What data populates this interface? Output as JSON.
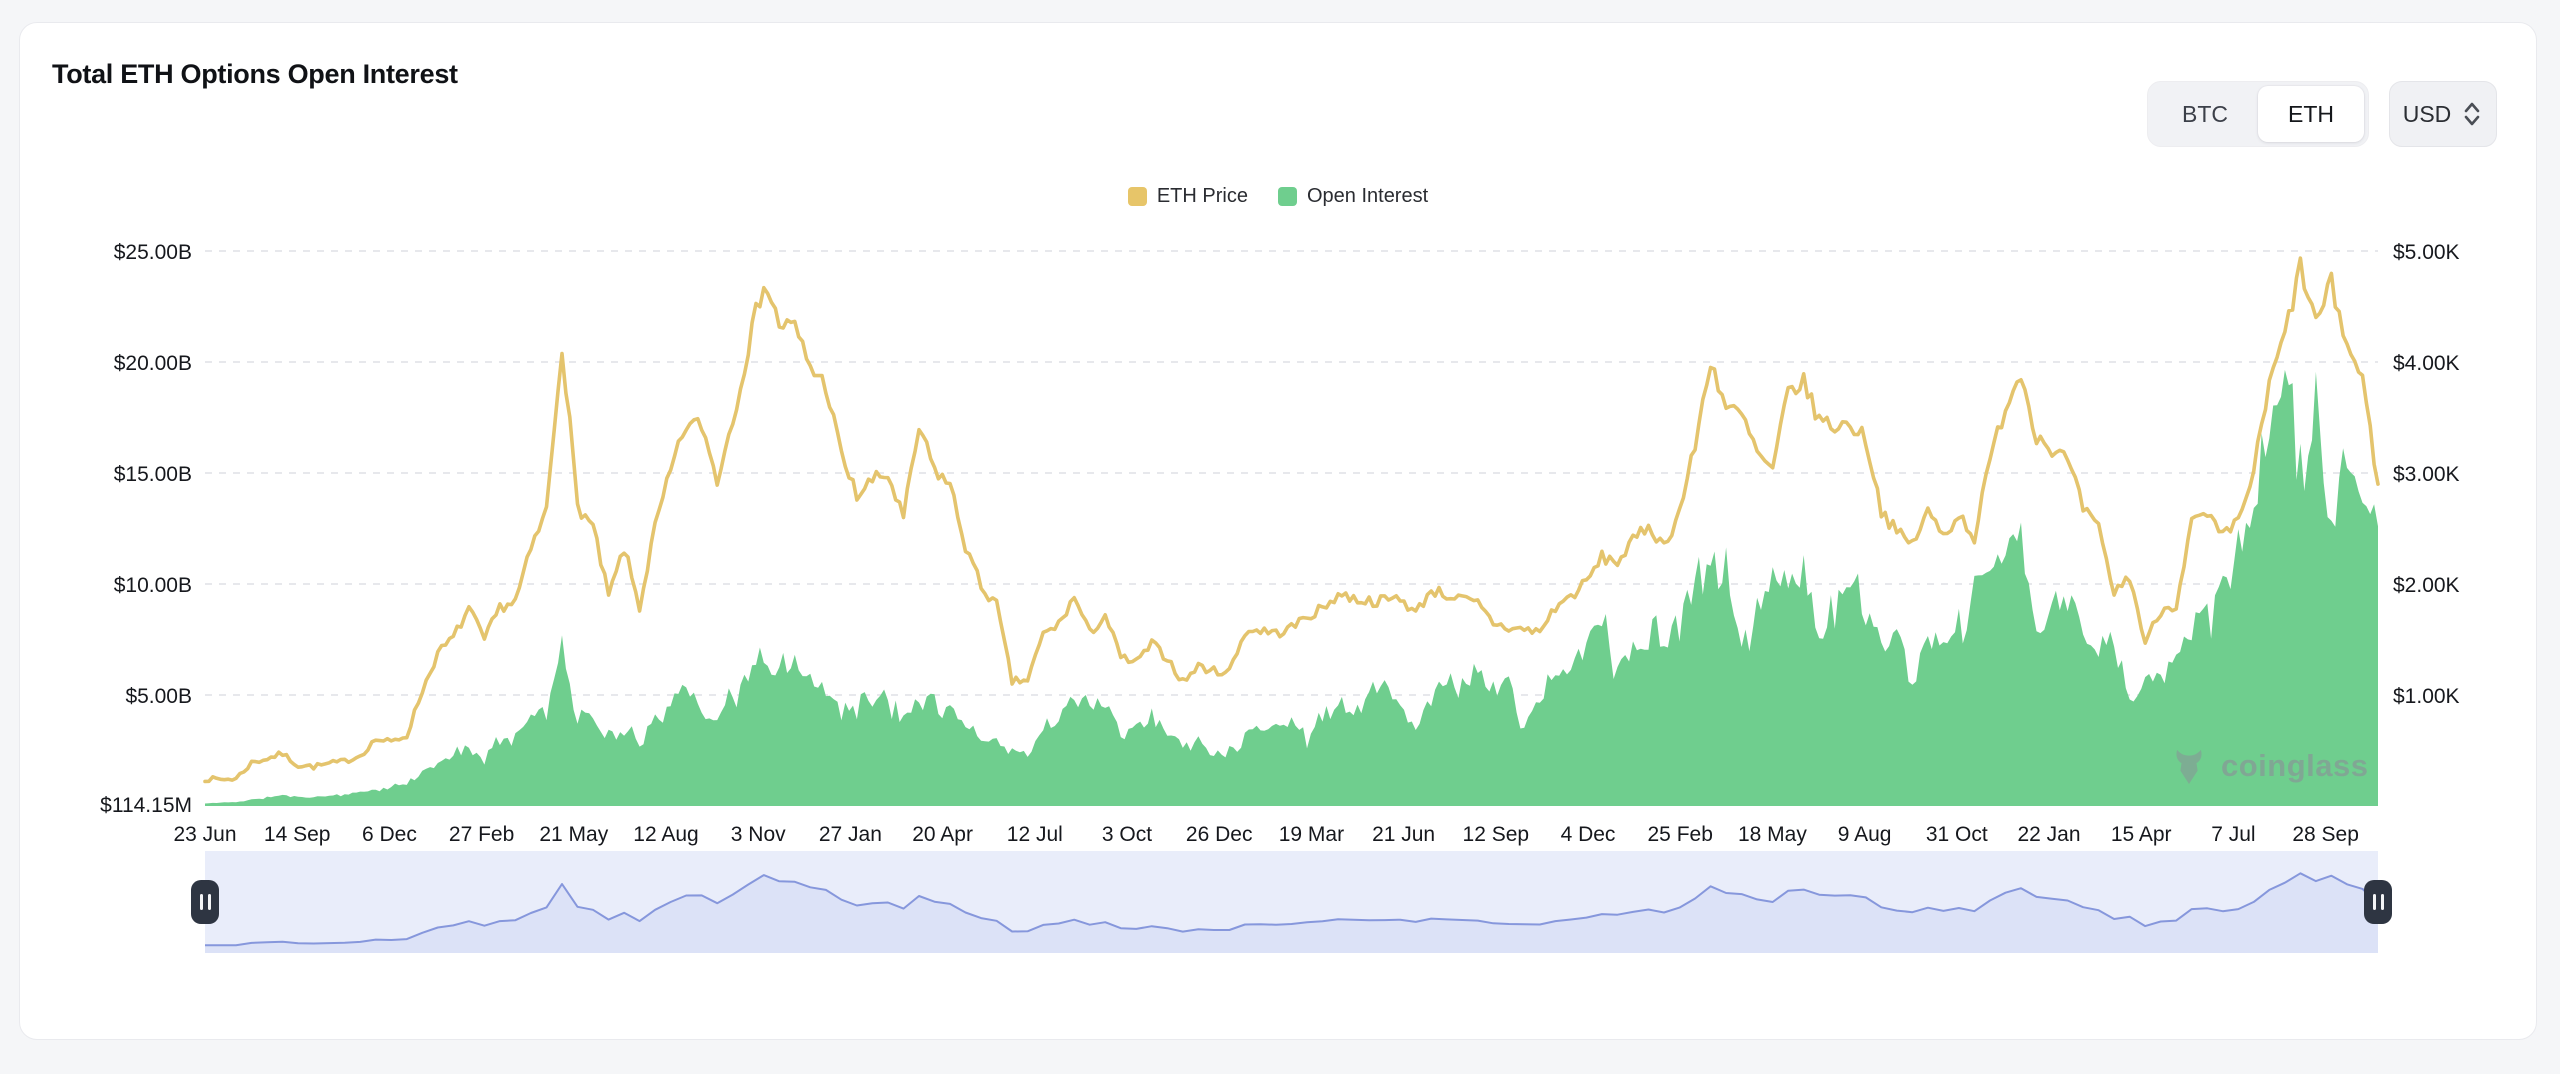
{
  "header": {
    "title": "Total ETH Options Open Interest",
    "coin_toggle": {
      "options": [
        "BTC",
        "ETH"
      ],
      "selected": "ETH"
    },
    "currency": {
      "value": "USD"
    }
  },
  "legend": {
    "items": [
      {
        "label": "ETH Price",
        "color": "#E7C569"
      },
      {
        "label": "Open Interest",
        "color": "#6FCE8E"
      }
    ]
  },
  "watermark": {
    "text": "coinglass"
  },
  "chart_data": {
    "type": "area",
    "description": "Dual-axis time series, ~Jun 2020 to Nov 2025, sampled biweekly",
    "x_tick_labels": [
      "23 Jun",
      "14 Sep",
      "6 Dec",
      "27 Feb",
      "21 May",
      "12 Aug",
      "3 Nov",
      "27 Jan",
      "20 Apr",
      "12 Jul",
      "3 Oct",
      "26 Dec",
      "19 Mar",
      "21 Jun",
      "12 Sep",
      "4 Dec",
      "25 Feb",
      "18 May",
      "9 Aug",
      "31 Oct",
      "22 Jan",
      "15 Apr",
      "7 Jul",
      "28 Sep"
    ],
    "left_axis": {
      "ticks": [
        "$25.00B",
        "$20.00B",
        "$15.00B",
        "$10.00B",
        "$5.00B"
      ],
      "min_label": "$114.15M",
      "min": 0.114,
      "max": 25,
      "unit": "USD billions"
    },
    "right_axis": {
      "ticks": [
        "$5.00K",
        "$4.00K",
        "$3.00K",
        "$2.00K",
        "$1.00K"
      ],
      "min": 0,
      "max": 5000,
      "unit": "USD"
    },
    "grid": "dashed-horizontal",
    "legend_position": "top-center",
    "series": [
      {
        "name": "ETH Price",
        "type": "line",
        "axis": "right",
        "color": "#E4C46D",
        "values": [
          243,
          240,
          246,
          390,
          428,
          470,
          366,
          355,
          380,
          404,
          455,
          600,
          575,
          636,
          1040,
          1375,
          1515,
          1780,
          1495,
          1790,
          1845,
          2305,
          2665,
          4165,
          2705,
          2510,
          1885,
          2320,
          1790,
          2510,
          3010,
          3430,
          3435,
          2935,
          3490,
          4135,
          4735,
          4340,
          4310,
          3955,
          3790,
          3160,
          2790,
          2935,
          2980,
          2590,
          3400,
          3030,
          2890,
          2340,
          1980,
          1810,
          1120,
          1135,
          1545,
          1635,
          1880,
          1555,
          1720,
          1335,
          1290,
          1460,
          1335,
          1115,
          1260,
          1215,
          1215,
          1570,
          1585,
          1555,
          1605,
          1710,
          1775,
          1910,
          1870,
          1845,
          1850,
          1880,
          1735,
          1950,
          1900,
          1860,
          1820,
          1650,
          1600,
          1590,
          1570,
          1790,
          1890,
          2015,
          2240,
          2200,
          2380,
          2530,
          2340,
          2655,
          3240,
          4020,
          3590,
          3520,
          3180,
          3010,
          3740,
          3810,
          3480,
          3420,
          3440,
          3310,
          2670,
          2460,
          2360,
          2650,
          2440,
          2630,
          2420,
          3110,
          3610,
          3900,
          3340,
          3220,
          3110,
          2680,
          2490,
          1920,
          2070,
          1470,
          1760,
          1820,
          2560,
          2610,
          2420,
          2560,
          3020,
          3790,
          4250,
          4850,
          4350,
          4700,
          4150,
          3850,
          2900
        ]
      },
      {
        "name": "Open Interest",
        "type": "area",
        "axis": "left",
        "color": "#6FCE8E",
        "values_billions": [
          0.114,
          0.15,
          0.18,
          0.28,
          0.38,
          0.48,
          0.42,
          0.4,
          0.47,
          0.52,
          0.6,
          0.75,
          0.85,
          1.0,
          1.5,
          1.9,
          2.3,
          2.6,
          2.2,
          2.9,
          3.3,
          3.9,
          4.6,
          7.4,
          4.2,
          4.0,
          3.0,
          3.3,
          3.0,
          3.9,
          4.7,
          5.3,
          4.4,
          3.9,
          5.0,
          5.9,
          6.5,
          6.3,
          6.6,
          5.4,
          5.2,
          4.4,
          4.6,
          4.9,
          4.7,
          4.3,
          5.2,
          4.8,
          4.4,
          3.6,
          3.1,
          2.9,
          2.3,
          2.6,
          3.4,
          3.9,
          5.5,
          4.4,
          4.6,
          3.3,
          3.5,
          3.9,
          3.3,
          2.7,
          3.0,
          2.3,
          2.6,
          3.2,
          3.6,
          3.4,
          3.9,
          3.0,
          4.3,
          4.7,
          4.2,
          5.0,
          5.6,
          4.6,
          3.4,
          5.2,
          5.8,
          5.3,
          6.1,
          5.0,
          5.6,
          3.6,
          4.9,
          5.5,
          6.3,
          7.2,
          8.3,
          6.2,
          7.0,
          7.8,
          7.2,
          8.6,
          9.8,
          11.2,
          11.5,
          7.2,
          9.0,
          9.6,
          10.4,
          10.8,
          7.6,
          9.2,
          9.8,
          8.8,
          7.0,
          8.2,
          5.2,
          7.6,
          7.2,
          8.4,
          9.2,
          10.6,
          11.4,
          12.2,
          7.2,
          9.2,
          9.0,
          8.6,
          6.6,
          7.2,
          4.8,
          5.6,
          6.2,
          7.0,
          7.6,
          8.8,
          9.4,
          11.0,
          13.6,
          16.0,
          20.4,
          16.5,
          18.0,
          12.2,
          15.8,
          14.0,
          12.6
        ]
      }
    ],
    "navigator": {
      "shows": "ETH Price",
      "range": "full",
      "line_color": "#8697dc",
      "fill_color": "#dce2f7",
      "background": "#e9edfa"
    }
  }
}
